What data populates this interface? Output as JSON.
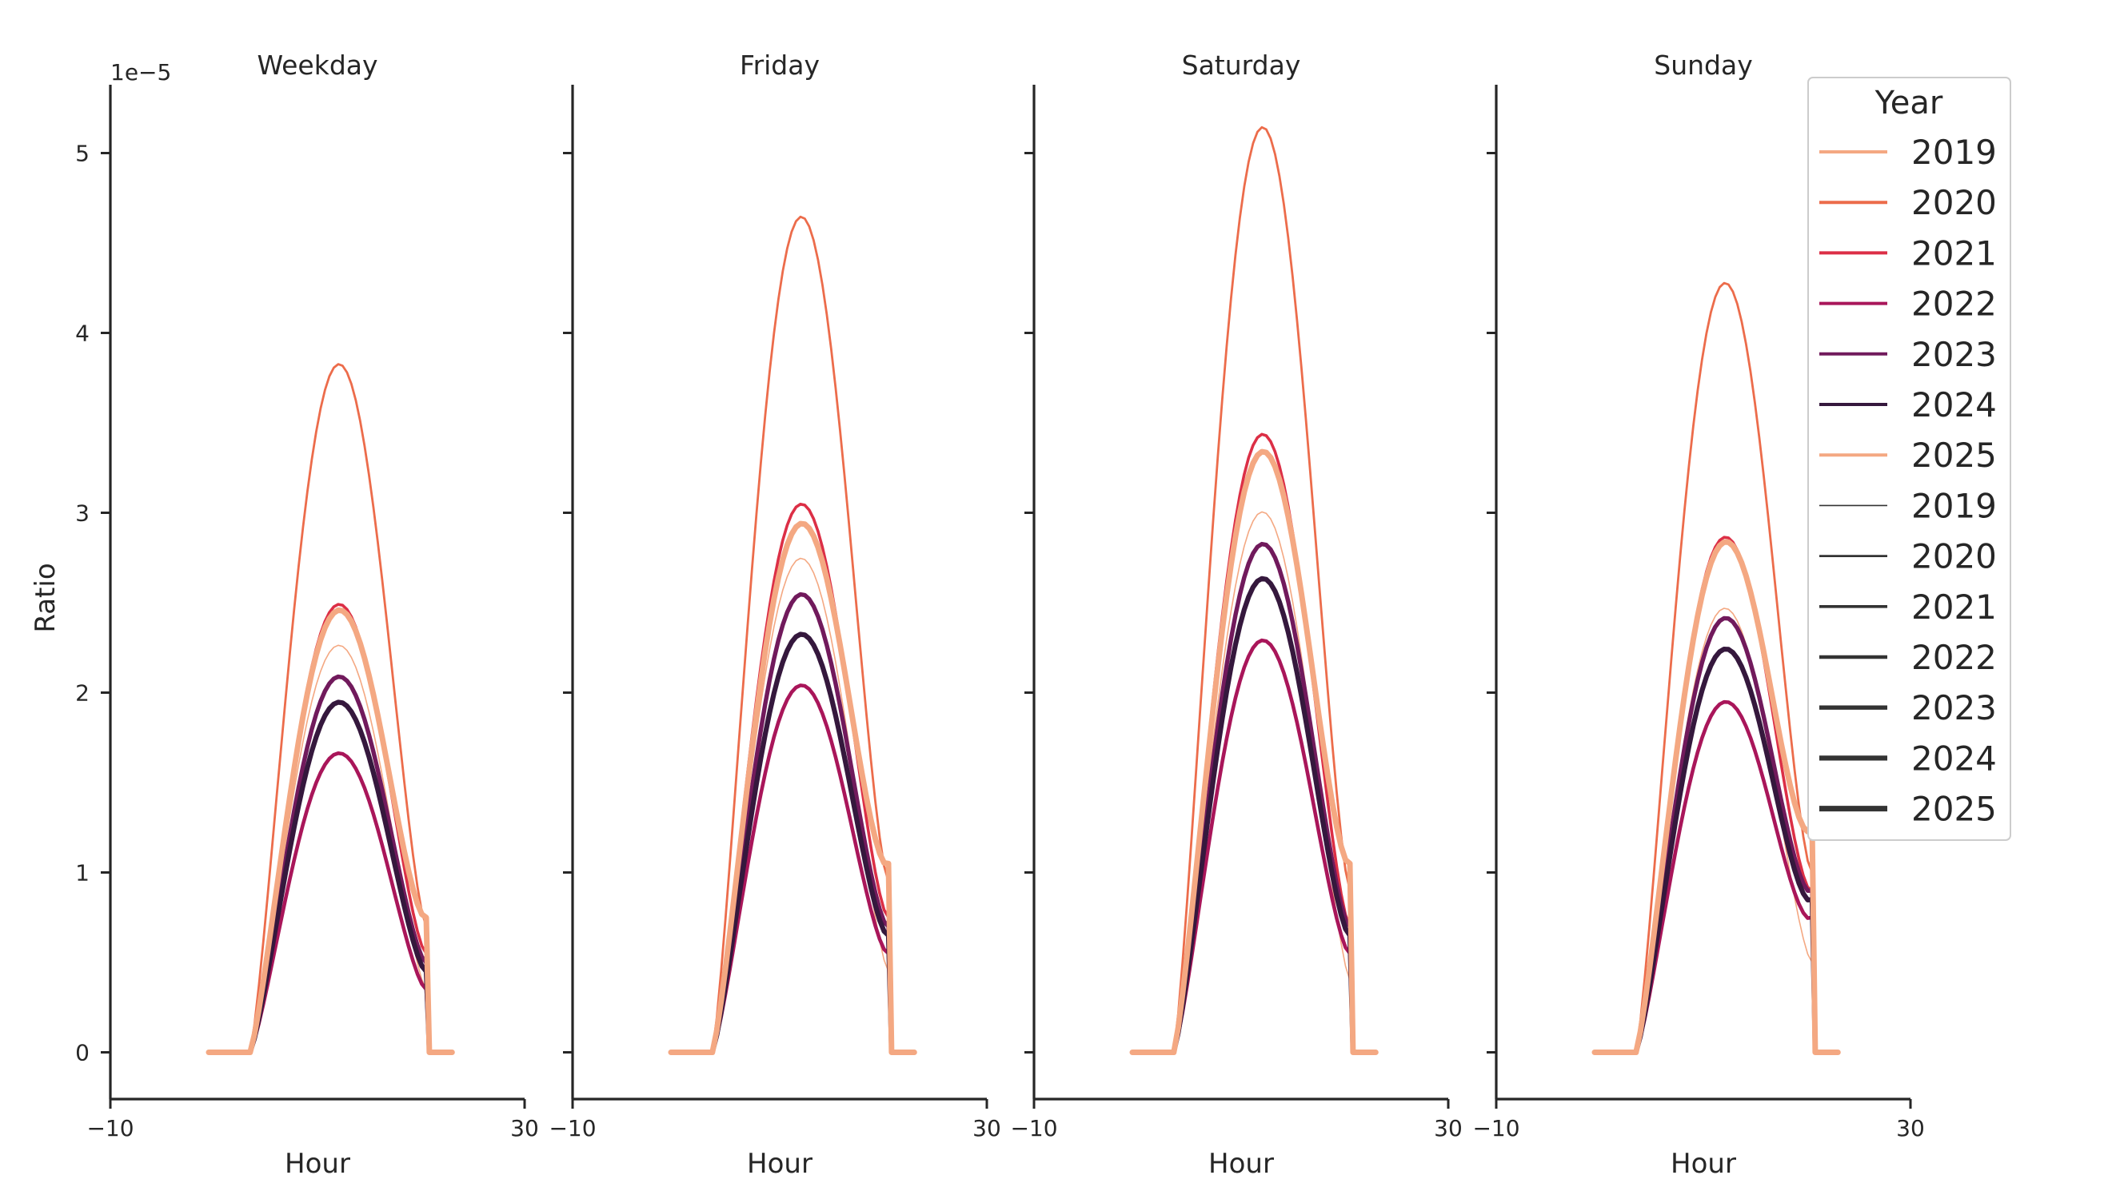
{
  "chart_data": {
    "type": "line",
    "ylabel": "Ratio",
    "xlabel": "Hour",
    "y_scale_label": "1e−5",
    "xlim": [
      -10,
      30
    ],
    "ylim": [
      -0.26,
      5.38
    ],
    "x_ticks": [
      -10,
      30
    ],
    "y_ticks": [
      0,
      1,
      2,
      3,
      4,
      5
    ],
    "panels": [
      {
        "title": "Weekday",
        "series": [
          {
            "name": "2019",
            "peak": 2.25,
            "end": 0.35
          },
          {
            "name": "2020",
            "peak": 3.8,
            "end": 0.7
          },
          {
            "name": "2021",
            "peak": 2.47,
            "end": 0.55
          },
          {
            "name": "2022",
            "peak": 1.65,
            "end": 0.35
          },
          {
            "name": "2023",
            "peak": 2.07,
            "end": 0.5
          },
          {
            "name": "2024",
            "peak": 1.93,
            "end": 0.45
          },
          {
            "name": "2025",
            "peak": 2.43,
            "end": 0.75
          }
        ]
      },
      {
        "title": "Friday",
        "series": [
          {
            "name": "2019",
            "peak": 2.73,
            "end": 0.45
          },
          {
            "name": "2020",
            "peak": 4.61,
            "end": 0.95
          },
          {
            "name": "2021",
            "peak": 3.02,
            "end": 0.75
          },
          {
            "name": "2022",
            "peak": 2.02,
            "end": 0.55
          },
          {
            "name": "2023",
            "peak": 2.52,
            "end": 0.7
          },
          {
            "name": "2024",
            "peak": 2.3,
            "end": 0.65
          },
          {
            "name": "2025",
            "peak": 2.9,
            "end": 1.05
          }
        ]
      },
      {
        "title": "Saturday",
        "series": [
          {
            "name": "2019",
            "peak": 2.99,
            "end": 0.4
          },
          {
            "name": "2020",
            "peak": 5.11,
            "end": 0.9
          },
          {
            "name": "2021",
            "peak": 3.41,
            "end": 0.7
          },
          {
            "name": "2022",
            "peak": 2.27,
            "end": 0.55
          },
          {
            "name": "2023",
            "peak": 2.8,
            "end": 0.7
          },
          {
            "name": "2024",
            "peak": 2.61,
            "end": 0.65
          },
          {
            "name": "2025",
            "peak": 3.3,
            "end": 1.05
          }
        ]
      },
      {
        "title": "Sunday",
        "series": [
          {
            "name": "2019",
            "peak": 2.45,
            "end": 0.5
          },
          {
            "name": "2020",
            "peak": 4.24,
            "end": 1.0
          },
          {
            "name": "2021",
            "peak": 2.83,
            "end": 0.9
          },
          {
            "name": "2022",
            "peak": 1.92,
            "end": 0.75
          },
          {
            "name": "2023",
            "peak": 2.38,
            "end": 0.9
          },
          {
            "name": "2024",
            "peak": 2.21,
            "end": 0.85
          },
          {
            "name": "2025",
            "peak": 2.79,
            "end": 1.25
          }
        ]
      }
    ],
    "legend": {
      "title": "Year",
      "placement": "top-right",
      "hue_entries": [
        {
          "label": "2019",
          "color": "#f4a882"
        },
        {
          "label": "2020",
          "color": "#ec6c4b"
        },
        {
          "label": "2021",
          "color": "#dc2f46"
        },
        {
          "label": "2022",
          "color": "#a9165a"
        },
        {
          "label": "2023",
          "color": "#711a5c"
        },
        {
          "label": "2024",
          "color": "#35183d"
        },
        {
          "label": "2025",
          "color": "#f4a882"
        }
      ],
      "size_entries": [
        {
          "label": "2019",
          "color": "#333333"
        },
        {
          "label": "2020",
          "color": "#333333"
        },
        {
          "label": "2021",
          "color": "#333333"
        },
        {
          "label": "2022",
          "color": "#333333"
        },
        {
          "label": "2023",
          "color": "#333333"
        },
        {
          "label": "2024",
          "color": "#333333"
        },
        {
          "label": "2025",
          "color": "#333333"
        }
      ]
    }
  }
}
